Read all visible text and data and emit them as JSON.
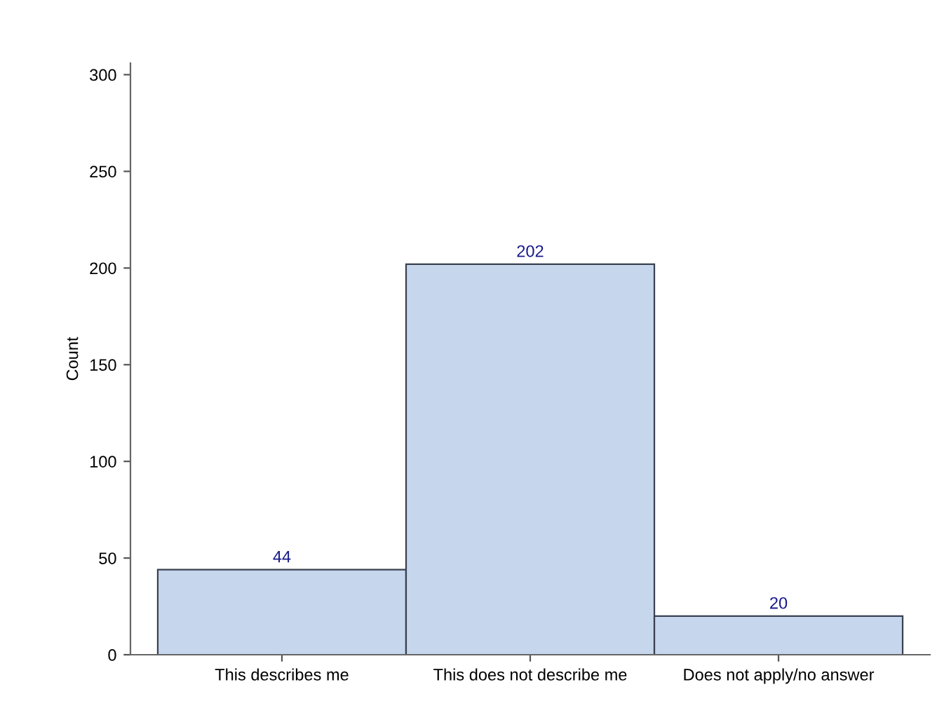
{
  "chart_data": {
    "type": "bar",
    "ylabel": "Count",
    "categories": [
      "This describes me",
      "This does not describe me",
      "Does not apply/no answer"
    ],
    "values": [
      44,
      202,
      20
    ],
    "color": "#c6d6ec",
    "ylim": [
      0,
      306
    ],
    "yticks": [
      0,
      50,
      100,
      150,
      200,
      250,
      300
    ],
    "data_labels": true,
    "grid": false,
    "legend": false
  }
}
